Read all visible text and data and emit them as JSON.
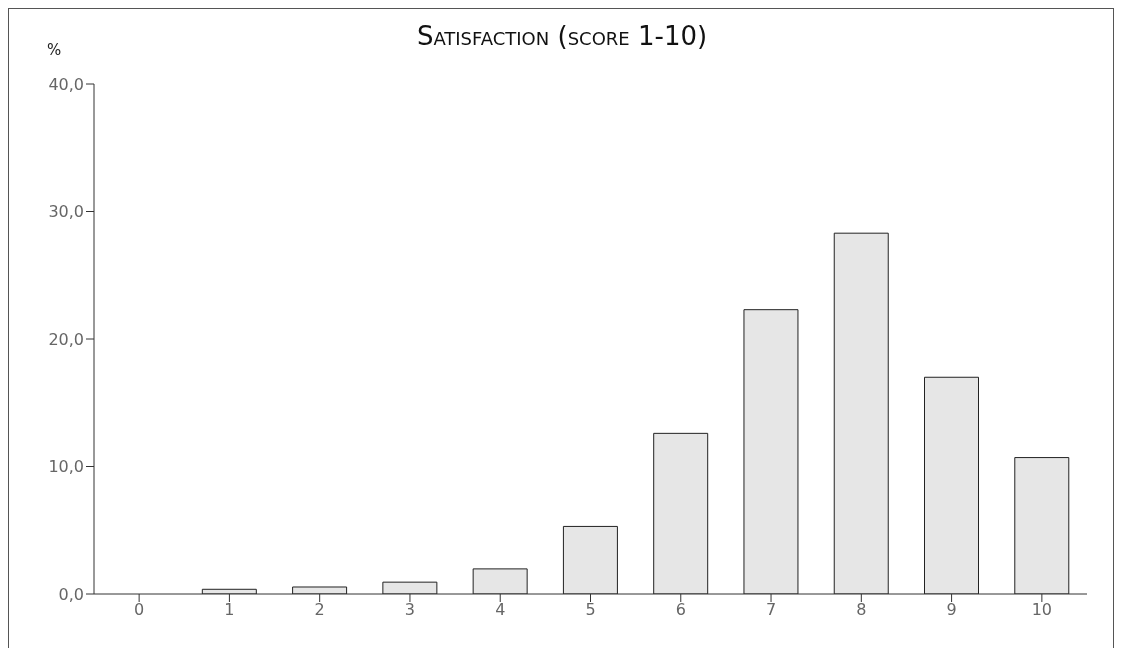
{
  "chart_data": {
    "type": "bar",
    "title": "Satisfaction (score 1-10)",
    "ylabel": "%",
    "categories": [
      "0",
      "1",
      "2",
      "3",
      "4",
      "5",
      "6",
      "7",
      "8",
      "9",
      "10"
    ],
    "values": [
      0,
      0.37,
      0.55,
      0.93,
      1.97,
      5.3,
      12.6,
      22.3,
      28.3,
      17.0,
      10.7
    ],
    "color": "#e6e6e6",
    "ylim": [
      0,
      40
    ],
    "yticks": [
      {
        "value": 0,
        "label": "0,0"
      },
      {
        "value": 10,
        "label": "10,0"
      },
      {
        "value": 20,
        "label": "20,0"
      },
      {
        "value": 30,
        "label": "30,0"
      },
      {
        "value": 40,
        "label": "40,0"
      }
    ],
    "grid": false
  }
}
